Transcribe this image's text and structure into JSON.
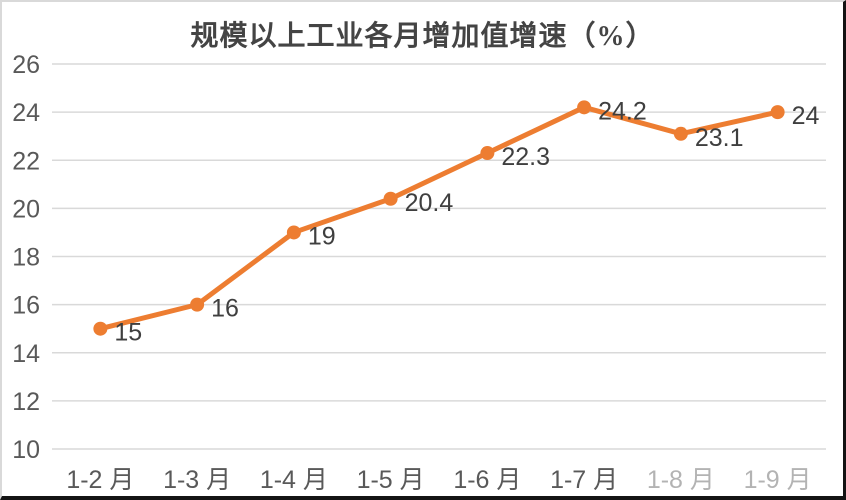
{
  "chart_data": {
    "type": "line",
    "title": "规模以上工业各月增加值增速（%）",
    "xlabel": "",
    "ylabel": "",
    "categories": [
      "1-2 月",
      "1-3 月",
      "1-4 月",
      "1-5 月",
      "1-6 月",
      "1-7 月",
      "1-8 月",
      "1-9 月"
    ],
    "values": [
      15,
      16,
      19,
      20.4,
      22.3,
      24.2,
      23.1,
      24
    ],
    "data_labels": [
      "15",
      "16",
      "19",
      "20.4",
      "22.3",
      "24.2",
      "23.1",
      "24"
    ],
    "ylim": [
      10,
      26
    ],
    "yticks": [
      10,
      12,
      14,
      16,
      18,
      20,
      22,
      24,
      26
    ],
    "grid": true,
    "legend": false,
    "category_opacities": [
      1,
      1,
      1,
      1,
      1,
      1,
      0.45,
      0.45
    ],
    "colors": {
      "line": "#ED7D31",
      "marker": "#ED7D31",
      "grid": "#D9D9D9",
      "tick_text": "#595959",
      "data_label_text": "#3F3F3F",
      "title_text": "#444444"
    }
  }
}
